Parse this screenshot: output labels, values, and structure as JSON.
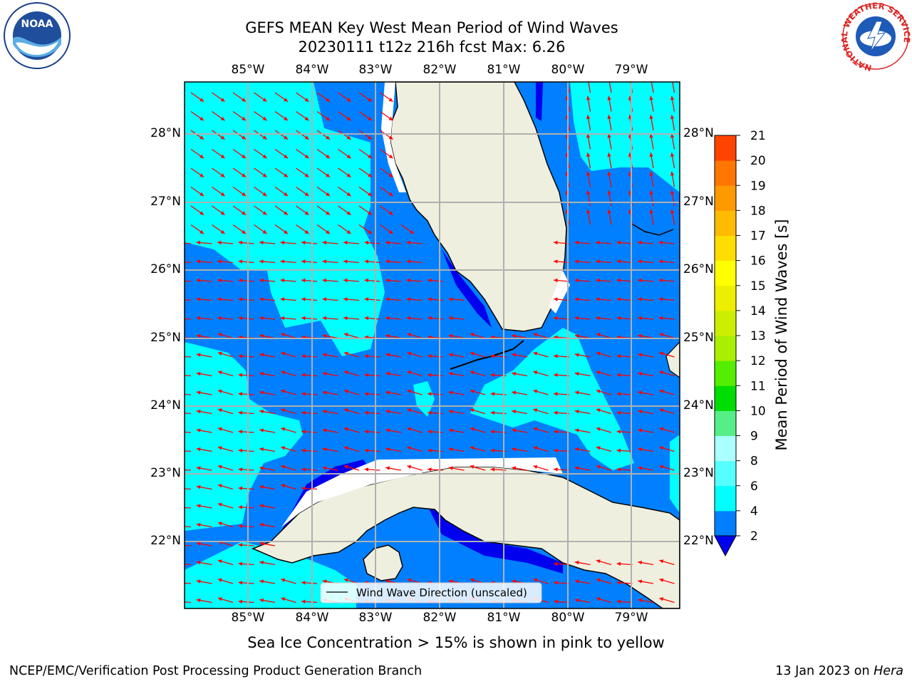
{
  "title": {
    "line1": "GEFS MEAN Key West Mean Period of Wind Waves",
    "line2": "20230111 t12z 216h fcst   Max: 6.26"
  },
  "map": {
    "lon_labels": [
      "85°W",
      "84°W",
      "83°W",
      "82°W",
      "81°W",
      "80°W",
      "79°W"
    ],
    "lat_labels": [
      "28°N",
      "27°N",
      "26°N",
      "25°N",
      "24°N",
      "23°N",
      "22°N"
    ],
    "legend_label": "Wind Wave Direction (unscaled)",
    "arrow_color": "#ff0000",
    "colors": {
      "ocean_low": "#0080ff",
      "ocean_high": "#00ffff",
      "ocean_deep": "#0000ee",
      "land": "#efefdf",
      "grid": "#b0b0b0"
    }
  },
  "colorbar": {
    "label": "Mean Period of Wind Waves [s]",
    "ticks": [
      "2",
      "4",
      "6",
      "8",
      "9",
      "10",
      "11",
      "12",
      "13",
      "14",
      "15",
      "16",
      "17",
      "18",
      "19",
      "20",
      "21"
    ],
    "colors": [
      "#0080ff",
      "#00ffff",
      "#55ffff",
      "#aaffff",
      "#55ee88",
      "#00dd00",
      "#55ee00",
      "#aaee00",
      "#ccee00",
      "#eeee00",
      "#ffff00",
      "#ffdd00",
      "#ffbb00",
      "#ff9900",
      "#ff7700",
      "#ff4400",
      "#ff0000"
    ],
    "extend_color": "#0000ee"
  },
  "logos": {
    "noaa": "NOAA",
    "noaa_ring": "NATIONAL OCEANIC AND ATMOSPHERIC ADMINISTRATION · U.S. DEPARTMENT OF COMMERCE",
    "nws_ring": "NATIONAL WEATHER SERVICE"
  },
  "ice_note": "Sea Ice Concentration > 15% is shown in pink to yellow",
  "footer": {
    "left": "NCEP/EMC/Verification Post Processing Product Generation Branch",
    "right_prefix": "13 Jan 2023 on ",
    "right_host": "Hera"
  }
}
